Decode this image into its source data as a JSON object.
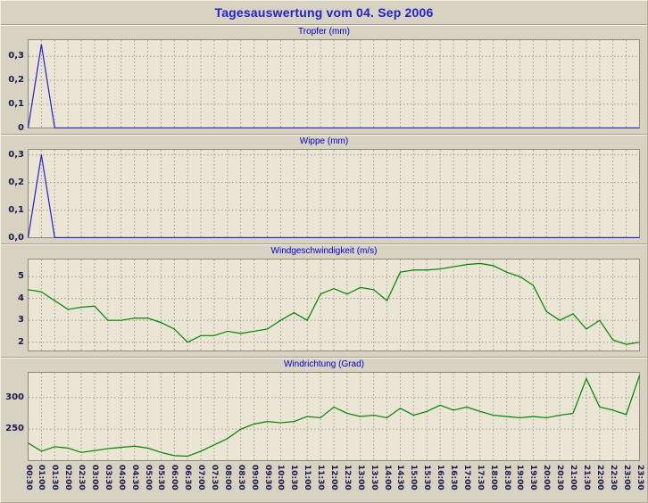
{
  "page": {
    "title": "Tagesauswertung vom 04. Sep 2006"
  },
  "colors": {
    "background": "#d8d2c2",
    "plot_background": "#eae5d5",
    "grid": "#9a9a88",
    "plot_border": "#8b8b7a",
    "title_text": "#2222cc",
    "chart_title_text": "#0000cc",
    "axis_text": "#1a1a4e",
    "rain_line": "#2222cc",
    "wind_line": "#008000"
  },
  "x_axis": {
    "labels": [
      "00:30",
      "01:00",
      "01:30",
      "02:00",
      "02:30",
      "03:00",
      "03:30",
      "04:00",
      "04:30",
      "05:00",
      "05:30",
      "06:00",
      "06:30",
      "07:00",
      "07:30",
      "08:00",
      "08:30",
      "09:00",
      "09:30",
      "10:00",
      "10:30",
      "11:00",
      "11:30",
      "12:00",
      "12:30",
      "13:00",
      "13:30",
      "14:00",
      "14:30",
      "15:00",
      "15:30",
      "16:00",
      "16:30",
      "17:00",
      "17:30",
      "18:00",
      "18:30",
      "19:00",
      "19:30",
      "20:00",
      "20:30",
      "21:00",
      "21:30",
      "22:00",
      "22:30",
      "23:00",
      "23:30"
    ]
  },
  "chart_data": [
    {
      "name": "tropfer",
      "type": "line",
      "title": "Tropfer (mm)",
      "line_color": "#2222cc",
      "y_min": 0,
      "y_max": 0.37,
      "y_ticks": [
        {
          "value": 0,
          "label": "0"
        },
        {
          "value": 0.1,
          "label": "0,1"
        },
        {
          "value": 0.2,
          "label": "0,2"
        },
        {
          "value": 0.3,
          "label": "0,3"
        }
      ],
      "values": [
        0,
        0.35,
        0,
        0,
        0,
        0,
        0,
        0,
        0,
        0,
        0,
        0,
        0,
        0,
        0,
        0,
        0,
        0,
        0,
        0,
        0,
        0,
        0,
        0,
        0,
        0,
        0,
        0,
        0,
        0,
        0,
        0,
        0,
        0,
        0,
        0,
        0,
        0,
        0,
        0,
        0,
        0,
        0,
        0,
        0,
        0,
        0
      ]
    },
    {
      "name": "wippe",
      "type": "line",
      "title": "Wippe (mm)",
      "line_color": "#2222cc",
      "y_min": 0,
      "y_max": 0.32,
      "y_ticks": [
        {
          "value": 0,
          "label": "0,0"
        },
        {
          "value": 0.1,
          "label": "0,1"
        },
        {
          "value": 0.2,
          "label": "0,2"
        },
        {
          "value": 0.3,
          "label": "0,3"
        }
      ],
      "values": [
        0,
        0.3,
        0,
        0,
        0,
        0,
        0,
        0,
        0,
        0,
        0,
        0,
        0,
        0,
        0,
        0,
        0,
        0,
        0,
        0,
        0,
        0,
        0,
        0,
        0,
        0,
        0,
        0,
        0,
        0,
        0,
        0,
        0,
        0,
        0,
        0,
        0,
        0,
        0,
        0,
        0,
        0,
        0,
        0,
        0,
        0,
        0
      ]
    },
    {
      "name": "windgeschwindigkeit",
      "type": "line",
      "title": "Windgeschwindigkeit (m/s)",
      "line_color": "#008000",
      "y_min": 1.6,
      "y_max": 5.8,
      "y_ticks": [
        {
          "value": 2,
          "label": "2"
        },
        {
          "value": 3,
          "label": "3"
        },
        {
          "value": 4,
          "label": "4"
        },
        {
          "value": 5,
          "label": "5"
        }
      ],
      "values": [
        4.4,
        4.3,
        3.9,
        3.5,
        3.6,
        3.65,
        3.0,
        3.0,
        3.1,
        3.1,
        2.9,
        2.6,
        2.0,
        2.3,
        2.3,
        2.5,
        2.4,
        2.5,
        2.6,
        3.0,
        3.35,
        3.0,
        4.2,
        4.45,
        4.2,
        4.5,
        4.4,
        3.9,
        5.2,
        5.3,
        5.3,
        5.35,
        5.45,
        5.55,
        5.6,
        5.5,
        5.2,
        5.0,
        4.6,
        3.4,
        3.0,
        3.3,
        2.6,
        3.0,
        2.1,
        1.9,
        2.0
      ]
    },
    {
      "name": "windrichtung",
      "type": "line",
      "title": "Windrichtung (Grad)",
      "line_color": "#008000",
      "y_min": 200,
      "y_max": 340,
      "y_ticks": [
        {
          "value": 250,
          "label": "250"
        },
        {
          "value": 300,
          "label": "300"
        }
      ],
      "values": [
        228,
        215,
        222,
        220,
        213,
        216,
        219,
        221,
        223,
        220,
        213,
        208,
        207,
        215,
        225,
        235,
        250,
        258,
        262,
        260,
        262,
        270,
        268,
        285,
        275,
        270,
        272,
        268,
        283,
        272,
        278,
        288,
        280,
        285,
        278,
        272,
        270,
        268,
        270,
        268,
        272,
        275,
        330,
        285,
        280,
        273,
        335
      ]
    }
  ]
}
